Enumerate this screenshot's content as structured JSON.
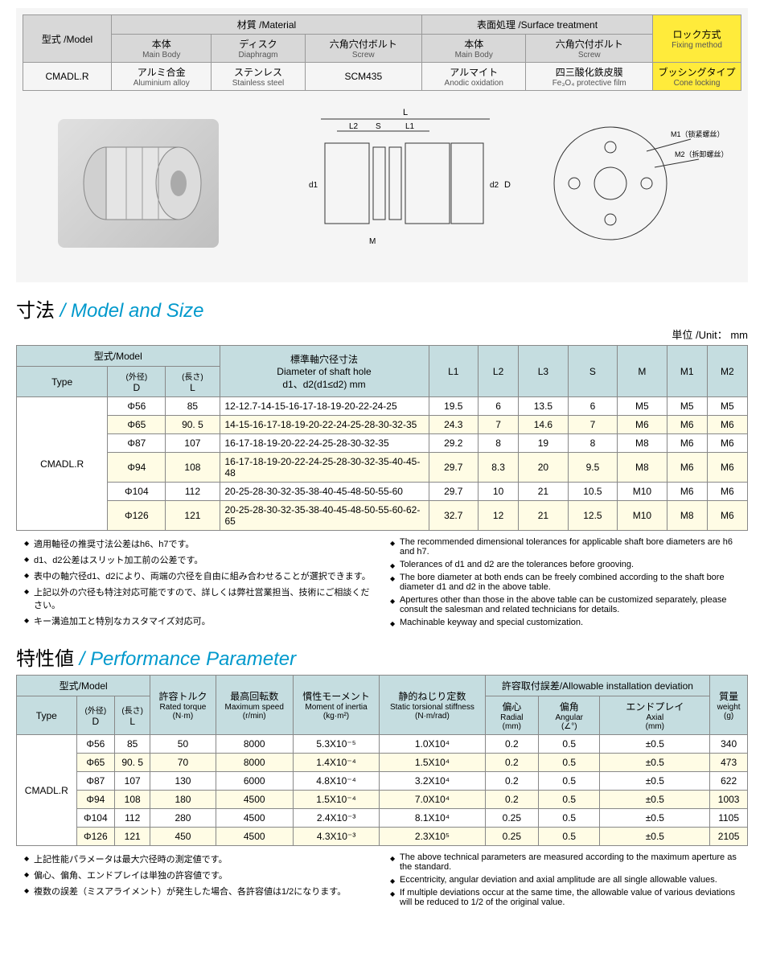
{
  "material_table": {
    "headers": {
      "model": {
        "jp": "型式",
        "en": "/Model"
      },
      "material": {
        "jp": "材質",
        "en": "/Material"
      },
      "surface": {
        "jp": "表面処理",
        "en": "/Surface treatment"
      },
      "fixing": {
        "jp": "ロック方式",
        "en": "Fixing method"
      }
    },
    "subheaders": {
      "body": {
        "jp": "本体",
        "en": "Main Body"
      },
      "disc": {
        "jp": "ディスク",
        "en": "Diaphragm"
      },
      "screw": {
        "jp": "六角穴付ボルト",
        "en": "Screw"
      },
      "body2": {
        "jp": "本体",
        "en": "Main Body"
      },
      "screw2": {
        "jp": "六角穴付ボルト",
        "en": "Screw"
      }
    },
    "row": {
      "model": "CMADL.R",
      "body_mat": {
        "jp": "アルミ合金",
        "en": "Aluminium alloy"
      },
      "disc_mat": {
        "jp": "ステンレス",
        "en": "Stainless steel"
      },
      "screw_mat": "SCM435",
      "body_surf": {
        "jp": "アルマイト",
        "en": "Anodic oxidation"
      },
      "screw_surf": {
        "jp": "四三酸化鉄皮膜",
        "en": "Fe₃O₄ protective film"
      },
      "fixing": {
        "jp": "ブッシングタイプ",
        "en": "Cone locking"
      }
    }
  },
  "diagram_labels": {
    "L": "L",
    "L1": "L1",
    "L2": "L2",
    "S": "S",
    "D": "D",
    "d1": "d1",
    "d2": "d2",
    "M": "M",
    "M1": "M1（锁紧螺丝）",
    "M2": "M2（拆卸螺丝）"
  },
  "size_section": {
    "title_jp": "寸法",
    "title_en": "/ Model and Size",
    "unit": "単位 /Unit： mm",
    "headers": {
      "model": {
        "jp": "型式",
        "en": "/Model"
      },
      "type": "Type",
      "D": {
        "jp": "(外径)",
        "sym": "D"
      },
      "L": {
        "jp": "(長さ)",
        "sym": "L"
      },
      "shaft": {
        "jp": "標準軸穴径寸法",
        "en": "Diameter of shaft hole",
        "sub": "d1、d2(d1≤d2) mm"
      },
      "L1": "L1",
      "L2": "L2",
      "L3": "L3",
      "S": "S",
      "M": "M",
      "M1": "M1",
      "M2": "M2"
    },
    "type_label": "CMADL.R",
    "rows": [
      {
        "D": "Φ56",
        "L": "85",
        "shaft": "12-12.7-14-15-16-17-18-19-20-22-24-25",
        "L1": "19.5",
        "L2": "6",
        "L3": "13.5",
        "S": "6",
        "M": "M5",
        "M1": "M5",
        "M2": "M5",
        "alt": false
      },
      {
        "D": "Φ65",
        "L": "90. 5",
        "shaft": "14-15-16-17-18-19-20-22-24-25-28-30-32-35",
        "L1": "24.3",
        "L2": "7",
        "L3": "14.6",
        "S": "7",
        "M": "M6",
        "M1": "M6",
        "M2": "M6",
        "alt": true
      },
      {
        "D": "Φ87",
        "L": "107",
        "shaft": "16-17-18-19-20-22-24-25-28-30-32-35",
        "L1": "29.2",
        "L2": "8",
        "L3": "19",
        "S": "8",
        "M": "M8",
        "M1": "M6",
        "M2": "M6",
        "alt": false
      },
      {
        "D": "Φ94",
        "L": "108",
        "shaft": "16-17-18-19-20-22-24-25-28-30-32-35-40-45-48",
        "L1": "29.7",
        "L2": "8.3",
        "L3": "20",
        "S": "9.5",
        "M": "M8",
        "M1": "M6",
        "M2": "M6",
        "alt": true
      },
      {
        "D": "Φ104",
        "L": "112",
        "shaft": "20-25-28-30-32-35-38-40-45-48-50-55-60",
        "L1": "29.7",
        "L2": "10",
        "L3": "21",
        "S": "10.5",
        "M": "M10",
        "M1": "M6",
        "M2": "M6",
        "alt": false
      },
      {
        "D": "Φ126",
        "L": "121",
        "shaft": "20-25-28-30-32-35-38-40-45-48-50-55-60-62-65",
        "L1": "32.7",
        "L2": "12",
        "L3": "21",
        "S": "12.5",
        "M": "M10",
        "M1": "M8",
        "M2": "M6",
        "alt": true
      }
    ],
    "notes_jp": [
      "適用軸径の推奨寸法公差はh6、h7です。",
      "d1、d2公差はスリット加工前の公差です。",
      "表中の軸穴径d1、d2により、両端の穴径を自由に組み合わせることが選択できます。",
      "上記以外の穴径も特注対応可能ですので、詳しくは弊社営業担当、技術にご相談ください。",
      "キー溝追加工と特別なカスタマイズ対応可。"
    ],
    "notes_en": [
      "The recommended dimensional tolerances for applicable shaft bore diameters are h6 and h7.",
      "Tolerances of d1 and d2 are the tolerances before grooving.",
      "The bore diameter at both ends can be freely combined according to the shaft bore diameter d1 and d2 in the above table.",
      "Apertures other than those in the above table can be customized separately, please consult the salesman and related technicians for details.",
      "Machinable keyway and special customization."
    ]
  },
  "perf_section": {
    "title_jp": "特性値",
    "title_en": "/ Performance Parameter",
    "headers": {
      "model": {
        "jp": "型式",
        "en": "/Model"
      },
      "type": "Type",
      "D": {
        "jp": "(外径)",
        "sym": "D"
      },
      "L": {
        "jp": "(長さ)",
        "sym": "L"
      },
      "torque": {
        "jp": "許容トルク",
        "en": "Rated torque",
        "unit": "(N·m)"
      },
      "speed": {
        "jp": "最高回転数",
        "en": "Maximum speed",
        "unit": "(r/min)"
      },
      "inertia": {
        "jp": "慣性モーメント",
        "en": "Moment of inertia",
        "unit": "(kg·m²)"
      },
      "stiff": {
        "jp": "静的ねじり定数",
        "en": "Static torsional stiffness",
        "unit": "(N·m/rad)"
      },
      "deviation": {
        "jp": "許容取付誤差",
        "en": "/Allowable installation deviation"
      },
      "radial": {
        "jp": "偏心",
        "en": "Radial",
        "unit": "(mm)"
      },
      "angular": {
        "jp": "偏角",
        "en": "Angular",
        "unit": "(∠°)"
      },
      "axial": {
        "jp": "エンドプレイ",
        "en": "Axial",
        "unit": "(mm)"
      },
      "weight": {
        "jp": "質量",
        "en": "weight",
        "unit": "(g)"
      }
    },
    "type_label": "CMADL.R",
    "rows": [
      {
        "D": "Φ56",
        "L": "85",
        "torque": "50",
        "speed": "8000",
        "inertia": "5.3X10⁻⁵",
        "stiff": "1.0X10⁴",
        "radial": "0.2",
        "angular": "0.5",
        "axial": "±0.5",
        "weight": "340",
        "alt": false
      },
      {
        "D": "Φ65",
        "L": "90. 5",
        "torque": "70",
        "speed": "8000",
        "inertia": "1.4X10⁻⁴",
        "stiff": "1.5X10⁴",
        "radial": "0.2",
        "angular": "0.5",
        "axial": "±0.5",
        "weight": "473",
        "alt": true
      },
      {
        "D": "Φ87",
        "L": "107",
        "torque": "130",
        "speed": "6000",
        "inertia": "4.8X10⁻⁴",
        "stiff": "3.2X10⁴",
        "radial": "0.2",
        "angular": "0.5",
        "axial": "±0.5",
        "weight": "622",
        "alt": false
      },
      {
        "D": "Φ94",
        "L": "108",
        "torque": "180",
        "speed": "4500",
        "inertia": "1.5X10⁻⁴",
        "stiff": "7.0X10⁴",
        "radial": "0.2",
        "angular": "0.5",
        "axial": "±0.5",
        "weight": "1003",
        "alt": true
      },
      {
        "D": "Φ104",
        "L": "112",
        "torque": "280",
        "speed": "4500",
        "inertia": "2.4X10⁻³",
        "stiff": "8.1X10⁴",
        "radial": "0.25",
        "angular": "0.5",
        "axial": "±0.5",
        "weight": "1105",
        "alt": false
      },
      {
        "D": "Φ126",
        "L": "121",
        "torque": "450",
        "speed": "4500",
        "inertia": "4.3X10⁻³",
        "stiff": "2.3X10⁵",
        "radial": "0.25",
        "angular": "0.5",
        "axial": "±0.5",
        "weight": "2105",
        "alt": true
      }
    ],
    "notes_jp": [
      "上記性能パラメータは最大穴径時の測定値です。",
      "偏心、偏角、エンドプレイは単独の許容値です。",
      "複数の誤差（ミスアライメント）が発生した場合、各許容値は1/2になります。"
    ],
    "notes_en": [
      "The above technical parameters are measured according to the maximum aperture as the standard.",
      "Eccentricity,  angular deviation and axial amplitude are all single allowable values.",
      "If multiple deviations occur at the same time, the allowable value of various deviations will be reduced to 1/2 of the original value."
    ]
  }
}
